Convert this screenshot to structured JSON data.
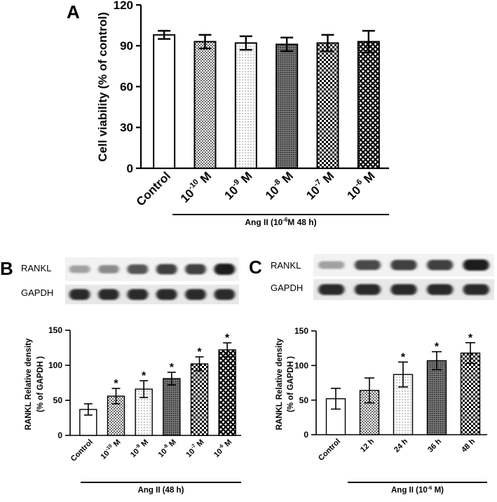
{
  "panels": {
    "a": {
      "letter": "A",
      "chart_data": {
        "type": "bar",
        "categories": [
          "Control",
          "10-10 M",
          "10-9 M",
          "10-8 M",
          "10-7 M",
          "10-6 M"
        ],
        "category_labels": [
          {
            "base": "Control",
            "exp": "",
            "unit": ""
          },
          {
            "base": "10",
            "exp": "-10",
            "unit": " M"
          },
          {
            "base": "10",
            "exp": "-9",
            "unit": " M"
          },
          {
            "base": "10",
            "exp": "-8",
            "unit": " M"
          },
          {
            "base": "10",
            "exp": "-7",
            "unit": " M"
          },
          {
            "base": "10",
            "exp": "-6",
            "unit": " M"
          }
        ],
        "values": [
          98,
          93,
          92,
          91,
          92,
          93
        ],
        "errors": [
          3,
          5,
          5,
          5,
          6,
          8
        ],
        "patterns": [
          "white",
          "dots",
          "fine",
          "dense",
          "check",
          "crosshatch"
        ],
        "significant": [
          false,
          false,
          false,
          false,
          false,
          false
        ],
        "ylabel": "Cell viability (% of control)",
        "ylim": [
          0,
          120
        ],
        "yticks": [
          0,
          30,
          60,
          90,
          120
        ],
        "group_label": {
          "base": "Ang II (10",
          "exp": "-6",
          "rest": "M 48 h)"
        }
      }
    },
    "b": {
      "letter": "B",
      "blot": {
        "rows": [
          "RANKL",
          "GAPDH"
        ],
        "band_intensity": [
          [
            0.35,
            0.45,
            0.7,
            0.8,
            0.8,
            0.95
          ],
          [
            0.9,
            0.9,
            0.9,
            0.9,
            0.9,
            0.9
          ]
        ]
      },
      "chart_data": {
        "type": "bar",
        "categories": [
          "Control",
          "10-10 M",
          "10-9 M",
          "10-8 M",
          "10-7 M",
          "10-6 M"
        ],
        "category_labels": [
          {
            "base": "Control",
            "exp": "",
            "unit": ""
          },
          {
            "base": "10",
            "exp": "-10",
            "unit": " M"
          },
          {
            "base": "10",
            "exp": "-9",
            "unit": " M"
          },
          {
            "base": "10",
            "exp": "-8",
            "unit": " M"
          },
          {
            "base": "10",
            "exp": "-7",
            "unit": " M"
          },
          {
            "base": "10",
            "exp": "-6",
            "unit": " M"
          }
        ],
        "values": [
          37,
          56,
          66,
          81,
          102,
          122
        ],
        "errors": [
          8,
          11,
          12,
          9,
          10,
          10
        ],
        "patterns": [
          "white",
          "dots",
          "fine",
          "dense",
          "check",
          "crosshatch"
        ],
        "significant": [
          false,
          true,
          true,
          true,
          true,
          true
        ],
        "sig_marker": "*",
        "ylabel": [
          "RANKL Relative density",
          "(% of GAPDH  )"
        ],
        "ylim": [
          0,
          150
        ],
        "yticks": [
          0,
          50,
          100,
          150
        ],
        "group_label": {
          "base": "Ang II (48  h)",
          "exp": "",
          "rest": ""
        }
      }
    },
    "c": {
      "letter": "C",
      "blot": {
        "rows": [
          "RANKL",
          "GAPDH"
        ],
        "band_intensity": [
          [
            0.35,
            0.75,
            0.8,
            0.8,
            0.95
          ],
          [
            0.9,
            0.9,
            0.9,
            0.9,
            0.9
          ]
        ]
      },
      "chart_data": {
        "type": "bar",
        "categories": [
          "Control",
          "12 h",
          "24 h",
          "36 h",
          "48 h"
        ],
        "category_labels": [
          {
            "base": "Control",
            "exp": "",
            "unit": ""
          },
          {
            "base": "12 h",
            "exp": "",
            "unit": ""
          },
          {
            "base": "24 h",
            "exp": "",
            "unit": ""
          },
          {
            "base": "36 h",
            "exp": "",
            "unit": ""
          },
          {
            "base": "48 h",
            "exp": "",
            "unit": ""
          }
        ],
        "values": [
          52,
          64,
          87,
          107,
          118
        ],
        "errors": [
          15,
          18,
          18,
          13,
          15
        ],
        "patterns": [
          "white",
          "dots",
          "fine",
          "dense",
          "check"
        ],
        "significant": [
          false,
          false,
          true,
          true,
          true
        ],
        "sig_marker": "*",
        "ylabel": [
          "RANKL Relative density",
          "(% of GAPDH  )"
        ],
        "ylim": [
          0,
          150
        ],
        "yticks": [
          0,
          50,
          100,
          150
        ],
        "group_label": {
          "base": "Ang II (10",
          "exp": "-6",
          "rest": " M)"
        }
      }
    }
  }
}
